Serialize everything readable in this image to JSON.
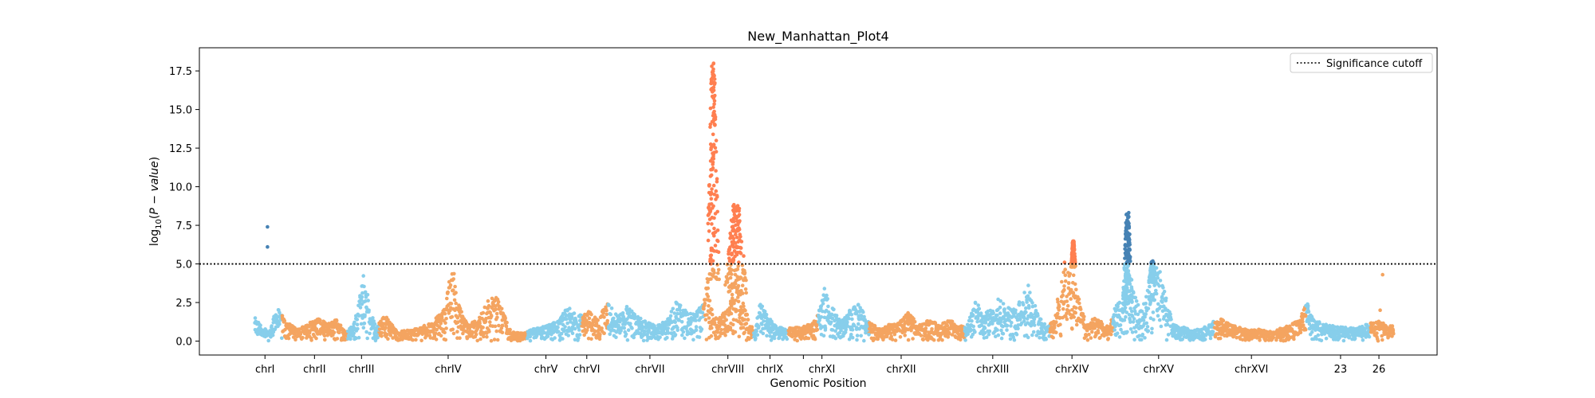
{
  "chart_data": {
    "type": "scatter",
    "title": "New_Manhattan_Plot4",
    "xlabel": "Genomic Position",
    "ylabel": "log₁₀(P − value)",
    "ylabel_parts": {
      "prefix": "log",
      "sub": "10",
      "open": "(",
      "italic": "P − value",
      "close": ")"
    },
    "ylim": [
      -0.9,
      19.0
    ],
    "y_ticks": [
      0.0,
      2.5,
      5.0,
      7.5,
      10.0,
      12.5,
      15.0,
      17.5
    ],
    "y_tick_labels": [
      "0.0",
      "2.5",
      "5.0",
      "7.5",
      "10.0",
      "12.5",
      "15.0",
      "17.5"
    ],
    "xlim": [
      0,
      100
    ],
    "grid": false,
    "legend": {
      "placement": "top-right",
      "entries": [
        {
          "label": "Significance cutoff",
          "style": "dotted",
          "color": "#000000"
        }
      ]
    },
    "significance_cutoff": 5.0,
    "colors": {
      "odd": "#87CEEB",
      "even": "#F4A460",
      "significant_odd": "#4682B4",
      "significant_even": "#FF7F50",
      "cutoff": "#000000"
    },
    "chromosomes": [
      {
        "name": "chrI",
        "label": "chrI",
        "start": 4.5,
        "end": 6.7,
        "center": 5.3
      },
      {
        "name": "chrII",
        "label": "chrII",
        "start": 6.7,
        "end": 12.0,
        "center": 9.3
      },
      {
        "name": "chrIII",
        "label": "chrIII",
        "start": 12.0,
        "end": 14.5,
        "center": 13.1
      },
      {
        "name": "chrIV",
        "label": "chrIV",
        "start": 14.5,
        "end": 26.5,
        "center": 20.1
      },
      {
        "name": "chrV",
        "label": "chrV",
        "start": 26.5,
        "end": 30.9,
        "center": 28.0
      },
      {
        "name": "chrVI",
        "label": "chrVI",
        "start": 30.9,
        "end": 33.0,
        "center": 31.3
      },
      {
        "name": "chrVII",
        "label": "chrVII",
        "start": 33.0,
        "end": 40.7,
        "center": 36.4
      },
      {
        "name": "chrVIII",
        "label": "chrVIII",
        "start": 40.7,
        "end": 44.8,
        "center": 42.7
      },
      {
        "name": "chrIX",
        "label": "chrIX",
        "start": 44.8,
        "end": 47.6,
        "center": 46.1
      },
      {
        "name": "chrX",
        "label": "",
        "start": 47.6,
        "end": 50.0,
        "center": 48.8
      },
      {
        "name": "chrXI",
        "label": "chrXI",
        "start": 50.0,
        "end": 54.1,
        "center": 50.3
      },
      {
        "name": "chrXII",
        "label": "chrXII",
        "start": 54.1,
        "end": 61.8,
        "center": 56.7
      },
      {
        "name": "chrXIII",
        "label": "chrXIII",
        "start": 61.8,
        "end": 68.7,
        "center": 64.1
      },
      {
        "name": "chrXIV",
        "label": "chrXIV",
        "start": 68.7,
        "end": 73.8,
        "center": 70.5
      },
      {
        "name": "chrXV",
        "label": "chrXV",
        "start": 73.8,
        "end": 82.0,
        "center": 77.5
      },
      {
        "name": "chrXVI",
        "label": "chrXVI",
        "start": 82.0,
        "end": 89.4,
        "center": 85.0
      },
      {
        "name": "23",
        "label": "23",
        "start": 89.4,
        "end": 94.6,
        "center": 92.2
      },
      {
        "name": "26",
        "label": "26",
        "start": 94.6,
        "end": 96.5,
        "center": 95.3
      }
    ],
    "background": [
      [
        4.5,
        1.5
      ],
      [
        5.0,
        1.0
      ],
      [
        5.6,
        0.6
      ],
      [
        6.3,
        2.2
      ],
      [
        7.0,
        1.3
      ],
      [
        7.8,
        0.8
      ],
      [
        8.6,
        1.0
      ],
      [
        9.5,
        1.6
      ],
      [
        10.3,
        1.1
      ],
      [
        11.1,
        1.5
      ],
      [
        11.8,
        0.6
      ],
      [
        12.4,
        1.0
      ],
      [
        12.8,
        2.2
      ],
      [
        13.3,
        4.6
      ],
      [
        13.8,
        2.0
      ],
      [
        14.3,
        1.0
      ],
      [
        15.0,
        1.7
      ],
      [
        16.0,
        0.6
      ],
      [
        17.5,
        0.8
      ],
      [
        18.8,
        1.2
      ],
      [
        19.9,
        2.2
      ],
      [
        20.4,
        5.3
      ],
      [
        20.9,
        2.5
      ],
      [
        21.6,
        1.2
      ],
      [
        22.4,
        1.3
      ],
      [
        23.3,
        2.6
      ],
      [
        23.9,
        3.1
      ],
      [
        24.5,
        2.0
      ],
      [
        25.2,
        0.6
      ],
      [
        26.2,
        0.5
      ],
      [
        27.0,
        0.8
      ],
      [
        28.0,
        1.0
      ],
      [
        29.0,
        1.3
      ],
      [
        29.8,
        2.3
      ],
      [
        30.6,
        1.6
      ],
      [
        31.4,
        2.0
      ],
      [
        32.2,
        1.4
      ],
      [
        33.0,
        2.6
      ],
      [
        33.8,
        1.6
      ],
      [
        34.6,
        2.3
      ],
      [
        35.4,
        1.6
      ],
      [
        36.2,
        1.2
      ],
      [
        37.0,
        1.0
      ],
      [
        37.8,
        1.4
      ],
      [
        38.5,
        2.6
      ],
      [
        39.2,
        2.2
      ],
      [
        40.0,
        1.7
      ],
      [
        40.6,
        2.4
      ],
      [
        41.1,
        4.0
      ],
      [
        41.5,
        1.5
      ],
      [
        42.0,
        1.5
      ],
      [
        42.8,
        2.2
      ],
      [
        43.3,
        3.8
      ],
      [
        43.9,
        2.8
      ],
      [
        44.4,
        1.4
      ],
      [
        44.9,
        0.6
      ],
      [
        45.3,
        2.6
      ],
      [
        45.9,
        1.6
      ],
      [
        46.6,
        1.0
      ],
      [
        47.4,
        0.8
      ],
      [
        48.2,
        0.9
      ],
      [
        49.1,
        1.0
      ],
      [
        50.0,
        1.7
      ],
      [
        50.5,
        3.5
      ],
      [
        51.1,
        2.3
      ],
      [
        51.8,
        1.3
      ],
      [
        52.5,
        2.0
      ],
      [
        53.3,
        2.4
      ],
      [
        54.0,
        1.3
      ],
      [
        54.8,
        0.9
      ],
      [
        55.6,
        1.1
      ],
      [
        56.5,
        1.2
      ],
      [
        57.3,
        1.9
      ],
      [
        58.1,
        1.0
      ],
      [
        58.9,
        1.4
      ],
      [
        59.8,
        1.1
      ],
      [
        60.7,
        1.4
      ],
      [
        61.4,
        0.9
      ],
      [
        62.1,
        1.2
      ],
      [
        62.8,
        2.8
      ],
      [
        63.3,
        1.6
      ],
      [
        64.1,
        2.4
      ],
      [
        64.8,
        2.9
      ],
      [
        65.6,
        2.0
      ],
      [
        66.3,
        2.6
      ],
      [
        66.9,
        3.9
      ],
      [
        67.5,
        2.4
      ],
      [
        68.1,
        1.2
      ],
      [
        68.6,
        1.0
      ],
      [
        69.1,
        1.4
      ],
      [
        69.5,
        3.7
      ],
      [
        70.0,
        4.9
      ],
      [
        70.6,
        4.3
      ],
      [
        71.2,
        2.4
      ],
      [
        71.7,
        1.1
      ],
      [
        72.2,
        1.5
      ],
      [
        72.8,
        1.3
      ],
      [
        73.5,
        0.9
      ],
      [
        74.0,
        2.2
      ],
      [
        74.5,
        2.8
      ],
      [
        75.0,
        3.5
      ],
      [
        75.5,
        3.2
      ],
      [
        75.9,
        2.2
      ],
      [
        76.4,
        2.5
      ],
      [
        76.9,
        4.5
      ],
      [
        77.4,
        5.2
      ],
      [
        77.9,
        3.5
      ],
      [
        78.4,
        1.9
      ],
      [
        78.9,
        1.0
      ],
      [
        79.5,
        0.9
      ],
      [
        80.2,
        0.7
      ],
      [
        80.9,
        0.8
      ],
      [
        81.6,
        1.1
      ],
      [
        82.3,
        1.6
      ],
      [
        83.0,
        1.2
      ],
      [
        83.8,
        1.0
      ],
      [
        84.7,
        0.7
      ],
      [
        85.5,
        0.8
      ],
      [
        86.4,
        0.6
      ],
      [
        87.2,
        0.8
      ],
      [
        88.0,
        1.0
      ],
      [
        88.9,
        1.4
      ],
      [
        89.5,
        2.6
      ],
      [
        90.0,
        1.4
      ],
      [
        90.9,
        1.1
      ],
      [
        91.8,
        1.0
      ],
      [
        92.7,
        0.9
      ],
      [
        93.5,
        0.8
      ],
      [
        94.2,
        1.1
      ],
      [
        94.8,
        1.2
      ],
      [
        95.4,
        1.4
      ],
      [
        96.0,
        1.0
      ]
    ],
    "peaks": [
      {
        "chrom": "chrVIII",
        "x": [
          41.0,
          42.0
        ],
        "y": [
          4.0,
          18.1
        ],
        "significant": true
      },
      {
        "chrom": "chrVIII",
        "x": [
          42.4,
          44.3
        ],
        "y": [
          3.0,
          9.0
        ],
        "significant": true
      },
      {
        "chrom": "chrXIV",
        "x": [
          70.4,
          70.8
        ],
        "y": [
          4.8,
          6.5
        ],
        "significant": true
      },
      {
        "chrom": "chrXV",
        "x": [
          74.6,
          75.4
        ],
        "y": [
          2.5,
          8.5
        ],
        "significant": true
      },
      {
        "chrom": "chrXV",
        "x": [
          76.7,
          77.3
        ],
        "y": [
          3.8,
          5.2
        ],
        "significant": false
      }
    ],
    "highlights": [
      {
        "chrom": "chrI",
        "x": 5.5,
        "y": 7.4
      },
      {
        "chrom": "chrI",
        "x": 5.5,
        "y": 6.1
      },
      {
        "chrom": "chrXIV",
        "x": 69.9,
        "y": 5.1
      },
      {
        "chrom": "26",
        "x": 95.6,
        "y": 4.3
      },
      {
        "chrom": "26",
        "x": 95.4,
        "y": 2.0
      }
    ]
  }
}
